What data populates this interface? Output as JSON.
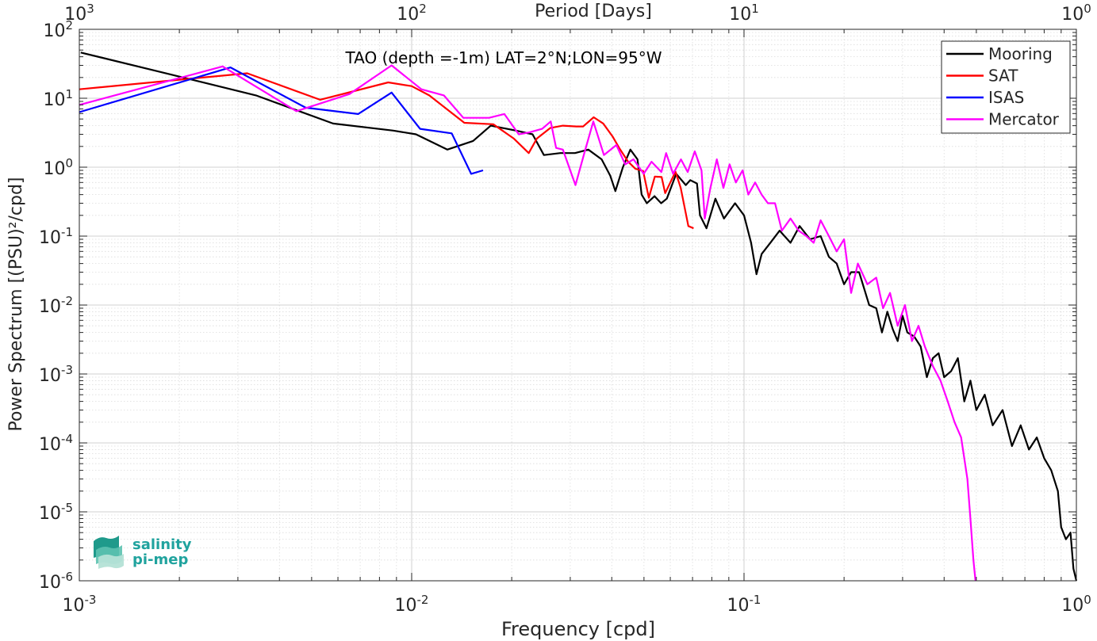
{
  "chart_data": {
    "type": "line",
    "title": "TAO (depth =-1m) LAT=2°N;LON=95°W",
    "xlabel": "Frequency [cpd]",
    "ylabel": "Power Spectrum [(PSU)²/cpd]",
    "top_xlabel": "Period [Days]",
    "x_scale": "log",
    "y_scale": "log",
    "xlim": [
      0.001,
      1
    ],
    "ylim": [
      1e-06,
      100
    ],
    "grid": true,
    "legend_position": "top-right",
    "x_ticks": [
      {
        "value": 0.001,
        "base": "10",
        "exp": "-3"
      },
      {
        "value": 0.01,
        "base": "10",
        "exp": "-2"
      },
      {
        "value": 0.1,
        "base": "10",
        "exp": "-1"
      },
      {
        "value": 1,
        "base": "10",
        "exp": "0"
      }
    ],
    "top_ticks": [
      {
        "value": 0.001,
        "base": "10",
        "exp": "3"
      },
      {
        "value": 0.01,
        "base": "10",
        "exp": "2"
      },
      {
        "value": 0.1,
        "base": "10",
        "exp": "1"
      },
      {
        "value": 1,
        "base": "10",
        "exp": "0"
      }
    ],
    "y_ticks": [
      {
        "value": 100,
        "base": "10",
        "exp": "2"
      },
      {
        "value": 10,
        "base": "10",
        "exp": "1"
      },
      {
        "value": 1,
        "base": "10",
        "exp": "0"
      },
      {
        "value": 0.1,
        "base": "10",
        "exp": "-1"
      },
      {
        "value": 0.01,
        "base": "10",
        "exp": "-2"
      },
      {
        "value": 0.001,
        "base": "10",
        "exp": "-3"
      },
      {
        "value": 0.0001,
        "base": "10",
        "exp": "-4"
      },
      {
        "value": 1e-05,
        "base": "10",
        "exp": "-5"
      },
      {
        "value": 1e-06,
        "base": "10",
        "exp": "-6"
      }
    ],
    "series": [
      {
        "name": "Mooring",
        "color": "#000000",
        "points": [
          [
            0.00101,
            46
          ],
          [
            0.0017,
            25
          ],
          [
            0.0034,
            11
          ],
          [
            0.0058,
            4.3
          ],
          [
            0.0088,
            3.4
          ],
          [
            0.0103,
            3.0
          ],
          [
            0.0128,
            1.8
          ],
          [
            0.0153,
            2.4
          ],
          [
            0.0173,
            4.0
          ],
          [
            0.0206,
            3.4
          ],
          [
            0.0231,
            3.0
          ],
          [
            0.025,
            1.5
          ],
          [
            0.028,
            1.6
          ],
          [
            0.031,
            1.6
          ],
          [
            0.034,
            1.8
          ],
          [
            0.0373,
            1.3
          ],
          [
            0.0396,
            0.75
          ],
          [
            0.041,
            0.45
          ],
          [
            0.0432,
            1.0
          ],
          [
            0.0455,
            1.8
          ],
          [
            0.0478,
            1.3
          ],
          [
            0.0492,
            0.4
          ],
          [
            0.051,
            0.3
          ],
          [
            0.0538,
            0.38
          ],
          [
            0.0563,
            0.3
          ],
          [
            0.0586,
            0.35
          ],
          [
            0.0625,
            0.8
          ],
          [
            0.0668,
            0.55
          ],
          [
            0.0689,
            0.65
          ],
          [
            0.0722,
            0.58
          ],
          [
            0.0737,
            0.2
          ],
          [
            0.0771,
            0.13
          ],
          [
            0.082,
            0.35
          ],
          [
            0.087,
            0.18
          ],
          [
            0.094,
            0.3
          ],
          [
            0.1,
            0.2
          ],
          [
            0.105,
            0.08
          ],
          [
            0.109,
            0.028
          ],
          [
            0.113,
            0.055
          ],
          [
            0.12,
            0.08
          ],
          [
            0.128,
            0.12
          ],
          [
            0.138,
            0.08
          ],
          [
            0.147,
            0.14
          ],
          [
            0.158,
            0.09
          ],
          [
            0.17,
            0.1
          ],
          [
            0.18,
            0.05
          ],
          [
            0.19,
            0.04
          ],
          [
            0.2,
            0.02
          ],
          [
            0.21,
            0.03
          ],
          [
            0.222,
            0.03
          ],
          [
            0.238,
            0.01
          ],
          [
            0.25,
            0.009
          ],
          [
            0.26,
            0.004
          ],
          [
            0.27,
            0.008
          ],
          [
            0.28,
            0.0045
          ],
          [
            0.29,
            0.003
          ],
          [
            0.3,
            0.007
          ],
          [
            0.31,
            0.004
          ],
          [
            0.325,
            0.0035
          ],
          [
            0.34,
            0.0025
          ],
          [
            0.355,
            0.0009
          ],
          [
            0.37,
            0.0017
          ],
          [
            0.385,
            0.002
          ],
          [
            0.4,
            0.0009
          ],
          [
            0.42,
            0.0011
          ],
          [
            0.44,
            0.0017
          ],
          [
            0.46,
            0.0004
          ],
          [
            0.48,
            0.0008
          ],
          [
            0.5,
            0.0003
          ],
          [
            0.53,
            0.0005
          ],
          [
            0.56,
            0.00018
          ],
          [
            0.6,
            0.0003
          ],
          [
            0.64,
            9e-05
          ],
          [
            0.68,
            0.00018
          ],
          [
            0.72,
            8e-05
          ],
          [
            0.76,
            0.00012
          ],
          [
            0.8,
            6e-05
          ],
          [
            0.84,
            4e-05
          ],
          [
            0.88,
            2e-05
          ],
          [
            0.9,
            6e-06
          ],
          [
            0.93,
            4e-06
          ],
          [
            0.96,
            5e-06
          ],
          [
            0.98,
            1.5e-06
          ],
          [
            1.0,
            1e-06
          ]
        ]
      },
      {
        "name": "SAT",
        "color": "#ff0000",
        "points": [
          [
            0.001,
            13.5
          ],
          [
            0.0032,
            23
          ],
          [
            0.0053,
            9.5
          ],
          [
            0.0085,
            17
          ],
          [
            0.01,
            15
          ],
          [
            0.0113,
            11
          ],
          [
            0.0144,
            4.4
          ],
          [
            0.0176,
            4.2
          ],
          [
            0.0203,
            2.6
          ],
          [
            0.0225,
            1.6
          ],
          [
            0.0238,
            2.6
          ],
          [
            0.0261,
            3.7
          ],
          [
            0.0285,
            4.0
          ],
          [
            0.0313,
            3.9
          ],
          [
            0.0328,
            3.9
          ],
          [
            0.0353,
            5.3
          ],
          [
            0.0377,
            4.3
          ],
          [
            0.0402,
            2.8
          ],
          [
            0.0421,
            1.9
          ],
          [
            0.0448,
            1.2
          ],
          [
            0.0471,
            0.95
          ],
          [
            0.0497,
            0.88
          ],
          [
            0.0517,
            0.36
          ],
          [
            0.0539,
            0.73
          ],
          [
            0.0565,
            0.72
          ],
          [
            0.0579,
            0.42
          ],
          [
            0.0622,
            0.86
          ],
          [
            0.0645,
            0.5
          ],
          [
            0.068,
            0.14
          ],
          [
            0.0705,
            0.13
          ]
        ]
      },
      {
        "name": "ISAS",
        "color": "#0000ff",
        "points": [
          [
            0.001,
            6.3
          ],
          [
            0.00285,
            28
          ],
          [
            0.0048,
            7.3
          ],
          [
            0.0069,
            5.9
          ],
          [
            0.0087,
            12.1
          ],
          [
            0.0106,
            3.6
          ],
          [
            0.0132,
            3.1
          ],
          [
            0.0151,
            0.8
          ],
          [
            0.0164,
            0.9
          ]
        ]
      },
      {
        "name": "Mercator",
        "color": "#ff00ff",
        "points": [
          [
            0.001,
            8.0
          ],
          [
            0.0027,
            29
          ],
          [
            0.0045,
            6.5
          ],
          [
            0.0065,
            11.5
          ],
          [
            0.0087,
            30
          ],
          [
            0.0107,
            13.5
          ],
          [
            0.0125,
            11
          ],
          [
            0.0143,
            5.2
          ],
          [
            0.0171,
            5.2
          ],
          [
            0.019,
            5.9
          ],
          [
            0.021,
            3.0
          ],
          [
            0.0226,
            3.2
          ],
          [
            0.0247,
            3.6
          ],
          [
            0.0262,
            4.6
          ],
          [
            0.0272,
            1.9
          ],
          [
            0.0285,
            1.8
          ],
          [
            0.0311,
            0.55
          ],
          [
            0.0333,
            1.8
          ],
          [
            0.0352,
            4.6
          ],
          [
            0.0379,
            1.5
          ],
          [
            0.0413,
            2.1
          ],
          [
            0.0439,
            1.1
          ],
          [
            0.0465,
            1.3
          ],
          [
            0.0499,
            0.8
          ],
          [
            0.0527,
            1.2
          ],
          [
            0.0564,
            0.85
          ],
          [
            0.0583,
            1.6
          ],
          [
            0.0612,
            0.8
          ],
          [
            0.0646,
            1.3
          ],
          [
            0.0677,
            0.85
          ],
          [
            0.0711,
            1.7
          ],
          [
            0.0745,
            0.9
          ],
          [
            0.0762,
            0.18
          ],
          [
            0.0792,
            0.5
          ],
          [
            0.0828,
            1.3
          ],
          [
            0.0867,
            0.5
          ],
          [
            0.0905,
            1.1
          ],
          [
            0.0945,
            0.6
          ],
          [
            0.099,
            0.9
          ],
          [
            0.103,
            0.4
          ],
          [
            0.108,
            0.6
          ],
          [
            0.113,
            0.4
          ],
          [
            0.118,
            0.3
          ],
          [
            0.124,
            0.3
          ],
          [
            0.13,
            0.12
          ],
          [
            0.138,
            0.18
          ],
          [
            0.146,
            0.12
          ],
          [
            0.154,
            0.1
          ],
          [
            0.162,
            0.08
          ],
          [
            0.17,
            0.17
          ],
          [
            0.18,
            0.1
          ],
          [
            0.19,
            0.06
          ],
          [
            0.2,
            0.09
          ],
          [
            0.21,
            0.015
          ],
          [
            0.22,
            0.04
          ],
          [
            0.235,
            0.02
          ],
          [
            0.25,
            0.025
          ],
          [
            0.262,
            0.009
          ],
          [
            0.275,
            0.015
          ],
          [
            0.29,
            0.005
          ],
          [
            0.305,
            0.01
          ],
          [
            0.32,
            0.003
          ],
          [
            0.335,
            0.005
          ],
          [
            0.35,
            0.0025
          ],
          [
            0.37,
            0.0013
          ],
          [
            0.39,
            0.0008
          ],
          [
            0.41,
            0.0004
          ],
          [
            0.43,
            0.0002
          ],
          [
            0.45,
            0.00012
          ],
          [
            0.47,
            3e-05
          ],
          [
            0.48,
            8e-06
          ],
          [
            0.49,
            2e-06
          ],
          [
            0.497,
            1e-06
          ]
        ]
      }
    ]
  },
  "logo": {
    "line1": "salinity",
    "line2": "pi-mep",
    "color": "#20a39e"
  }
}
